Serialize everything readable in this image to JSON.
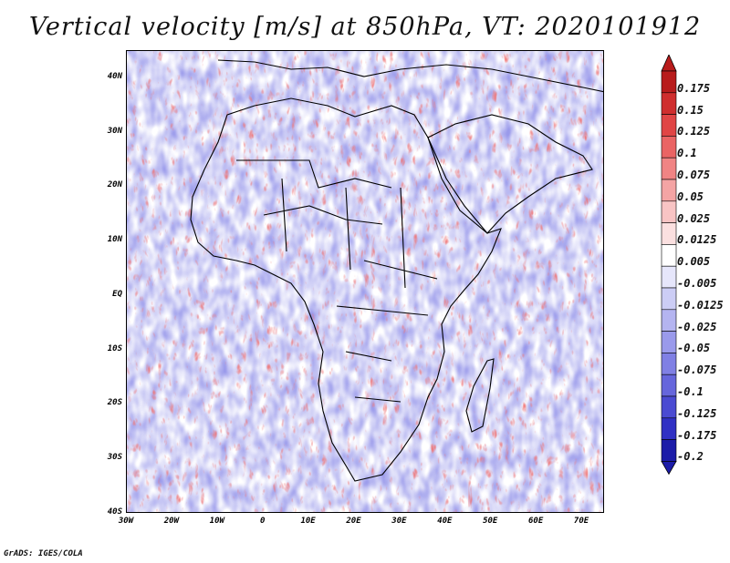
{
  "title": "Vertical velocity [m/s] at 850hPa, VT: 2020101912",
  "map": {
    "description_variable": "vertical velocity",
    "lat_labels": [
      "40N",
      "30N",
      "20N",
      "10N",
      "EQ",
      "10S",
      "20S",
      "30S",
      "40S"
    ],
    "lat_values": [
      40,
      30,
      20,
      10,
      0,
      -10,
      -20,
      -30,
      -40
    ],
    "lon_labels": [
      "30W",
      "20W",
      "10W",
      "0",
      "10E",
      "20E",
      "30E",
      "40E",
      "50E",
      "60E",
      "70E"
    ],
    "lon_values": [
      -30,
      -20,
      -10,
      0,
      10,
      20,
      30,
      40,
      50,
      60,
      70
    ],
    "lon_range": [
      -30,
      75
    ],
    "lat_range": [
      -40,
      45
    ]
  },
  "colorbar": {
    "labels": [
      "0.175",
      "0.15",
      "0.125",
      "0.1",
      "0.075",
      "0.05",
      "0.025",
      "0.0125",
      "0.005",
      "-0.005",
      "-0.0125",
      "-0.025",
      "-0.05",
      "-0.075",
      "-0.1",
      "-0.125",
      "-0.175",
      "-0.2"
    ],
    "colors": [
      "#b81c1c",
      "#cf2e2e",
      "#e04545",
      "#ea6464",
      "#f08484",
      "#f4a4a4",
      "#f8c4c4",
      "#fbe0e0",
      "#ffffff",
      "#e6e6fb",
      "#cccdf5",
      "#b4b4f0",
      "#9a9aeb",
      "#8080e4",
      "#6666dc",
      "#4b4bd2",
      "#3030c4",
      "#1c1ca8"
    ]
  },
  "credit": "GrADS: IGES/COLA"
}
